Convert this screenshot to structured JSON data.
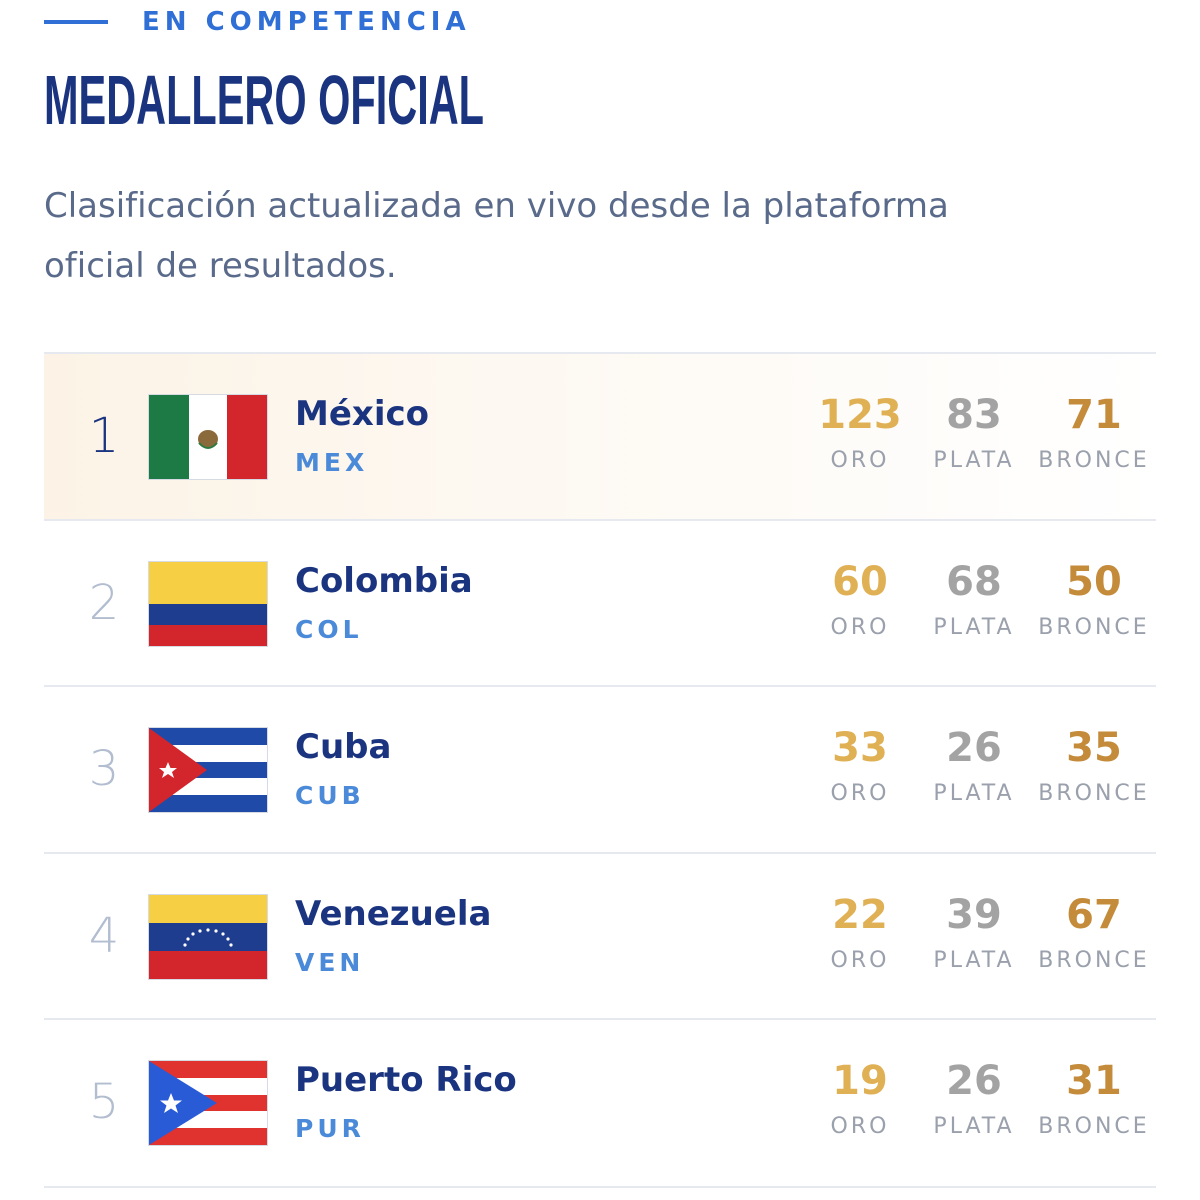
{
  "header": {
    "eyebrow": "EN COMPETENCIA",
    "title": "MEDALLERO OFICIAL",
    "description": "Clasificación actualizada en vivo desde la plataforma oficial de resultados."
  },
  "table": {
    "medal_labels": [
      "ORO",
      "PLATA",
      "BRONCE"
    ],
    "rows": [
      {
        "rank": 1,
        "country": "México",
        "code": "MEX",
        "gold": 123,
        "silver": 83,
        "bronze": 71
      },
      {
        "rank": 2,
        "country": "Colombia",
        "code": "COL",
        "gold": 60,
        "silver": 68,
        "bronze": 50
      },
      {
        "rank": 3,
        "country": "Cuba",
        "code": "CUB",
        "gold": 33,
        "silver": 26,
        "bronze": 35
      },
      {
        "rank": 4,
        "country": "Venezuela",
        "code": "VEN",
        "gold": 22,
        "silver": 39,
        "bronze": 67
      },
      {
        "rank": 5,
        "country": "Puerto Rico",
        "code": "PUR",
        "gold": 19,
        "silver": 26,
        "bronze": 31
      }
    ]
  }
}
